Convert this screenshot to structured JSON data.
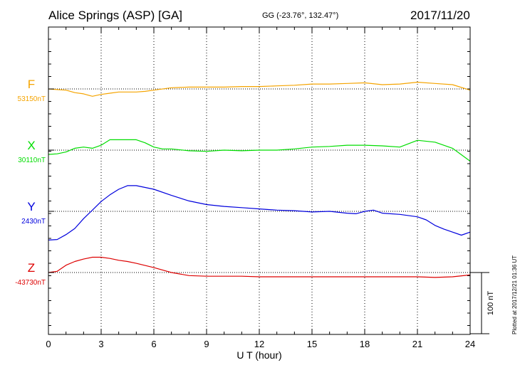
{
  "header": {
    "title": "Alice Springs (ASP)  [GA]",
    "coords": "GG (-23.76°, 132.47°)",
    "date": "2017/11/20"
  },
  "plotted_note": "Plotted at 2017/12/21 01:36 UT",
  "chart_data": {
    "type": "line",
    "xlabel": "U T (hour)",
    "xlim": [
      0,
      24
    ],
    "xticks": [
      0,
      3,
      6,
      9,
      12,
      15,
      18,
      21,
      24
    ],
    "grid": true,
    "scale_bar": "100 nT",
    "series": [
      {
        "name": "F",
        "baseline_label": "53150nT",
        "color": "#f5a400",
        "values": [
          [
            0,
            53150
          ],
          [
            0.5,
            53149
          ],
          [
            1.0,
            53148
          ],
          [
            1.5,
            53144
          ],
          [
            2.0,
            53142
          ],
          [
            2.5,
            53138
          ],
          [
            3.0,
            53141
          ],
          [
            3.5,
            53143
          ],
          [
            4.0,
            53145
          ],
          [
            4.5,
            53145
          ],
          [
            5.0,
            53145
          ],
          [
            5.5,
            53146
          ],
          [
            6.0,
            53148
          ],
          [
            7.0,
            53152
          ],
          [
            8.0,
            53153
          ],
          [
            9.0,
            53153
          ],
          [
            10.0,
            53153
          ],
          [
            11.0,
            53154
          ],
          [
            12.0,
            53154
          ],
          [
            13.0,
            53155
          ],
          [
            14.0,
            53156
          ],
          [
            15.0,
            53158
          ],
          [
            16.0,
            53158
          ],
          [
            17.0,
            53159
          ],
          [
            18.0,
            53160
          ],
          [
            19.0,
            53157
          ],
          [
            20.0,
            53158
          ],
          [
            21.0,
            53161
          ],
          [
            22.0,
            53159
          ],
          [
            23.0,
            53157
          ],
          [
            24.0,
            53148
          ]
        ]
      },
      {
        "name": "X",
        "baseline_label": "30110nT",
        "color": "#00dd00",
        "values": [
          [
            0,
            30103
          ],
          [
            0.5,
            30104
          ],
          [
            1.0,
            30107
          ],
          [
            1.5,
            30113
          ],
          [
            2.0,
            30115
          ],
          [
            2.5,
            30113
          ],
          [
            3.0,
            30118
          ],
          [
            3.5,
            30127
          ],
          [
            4.0,
            30127
          ],
          [
            4.5,
            30127
          ],
          [
            5.0,
            30127
          ],
          [
            5.5,
            30122
          ],
          [
            6.0,
            30115
          ],
          [
            6.5,
            30112
          ],
          [
            7.0,
            30112
          ],
          [
            8.0,
            30109
          ],
          [
            9.0,
            30108
          ],
          [
            10.0,
            30110
          ],
          [
            11.0,
            30109
          ],
          [
            12.0,
            30110
          ],
          [
            13.0,
            30110
          ],
          [
            14.0,
            30112
          ],
          [
            15.0,
            30115
          ],
          [
            16.0,
            30116
          ],
          [
            17.0,
            30118
          ],
          [
            18.0,
            30118
          ],
          [
            19.0,
            30117
          ],
          [
            20.0,
            30115
          ],
          [
            21.0,
            30126
          ],
          [
            22.0,
            30123
          ],
          [
            23.0,
            30113
          ],
          [
            24.0,
            30092
          ]
        ]
      },
      {
        "name": "Y",
        "baseline_label": "2430nT",
        "color": "#0000dd",
        "values": [
          [
            0,
            2383
          ],
          [
            0.5,
            2384
          ],
          [
            1.0,
            2392
          ],
          [
            1.5,
            2402
          ],
          [
            2.0,
            2418
          ],
          [
            2.5,
            2432
          ],
          [
            3.0,
            2446
          ],
          [
            3.5,
            2457
          ],
          [
            4.0,
            2466
          ],
          [
            4.5,
            2472
          ],
          [
            5.0,
            2472
          ],
          [
            6.0,
            2466
          ],
          [
            7.0,
            2456
          ],
          [
            8.0,
            2447
          ],
          [
            9.0,
            2441
          ],
          [
            10.0,
            2438
          ],
          [
            11.0,
            2436
          ],
          [
            12.0,
            2434
          ],
          [
            13.0,
            2432
          ],
          [
            14.0,
            2431
          ],
          [
            15.0,
            2429
          ],
          [
            16.0,
            2430
          ],
          [
            17.0,
            2427
          ],
          [
            17.5,
            2426
          ],
          [
            18.0,
            2430
          ],
          [
            18.5,
            2432
          ],
          [
            19.0,
            2427
          ],
          [
            20.0,
            2425
          ],
          [
            21.0,
            2421
          ],
          [
            21.5,
            2416
          ],
          [
            22.0,
            2407
          ],
          [
            22.5,
            2401
          ],
          [
            23.0,
            2396
          ],
          [
            23.5,
            2391
          ],
          [
            24.0,
            2396
          ]
        ]
      },
      {
        "name": "Z",
        "baseline_label": "-43730nT",
        "color": "#dd0000",
        "values": [
          [
            0,
            -43730
          ],
          [
            0.5,
            -43728
          ],
          [
            1.0,
            -43718
          ],
          [
            1.5,
            -43712
          ],
          [
            2.0,
            -43708
          ],
          [
            2.5,
            -43705
          ],
          [
            3.0,
            -43705
          ],
          [
            3.5,
            -43707
          ],
          [
            4.0,
            -43710
          ],
          [
            4.5,
            -43712
          ],
          [
            5.0,
            -43715
          ],
          [
            6.0,
            -43722
          ],
          [
            7.0,
            -43730
          ],
          [
            8.0,
            -43735
          ],
          [
            9.0,
            -43736
          ],
          [
            10.0,
            -43736
          ],
          [
            11.0,
            -43736
          ],
          [
            12.0,
            -43737
          ],
          [
            13.0,
            -43737
          ],
          [
            14.0,
            -43737
          ],
          [
            15.0,
            -43737
          ],
          [
            16.0,
            -43737
          ],
          [
            17.0,
            -43737
          ],
          [
            18.0,
            -43737
          ],
          [
            19.0,
            -43737
          ],
          [
            20.0,
            -43737
          ],
          [
            21.0,
            -43737
          ],
          [
            22.0,
            -43738
          ],
          [
            23.0,
            -43737
          ],
          [
            24.0,
            -43734
          ]
        ]
      }
    ]
  }
}
